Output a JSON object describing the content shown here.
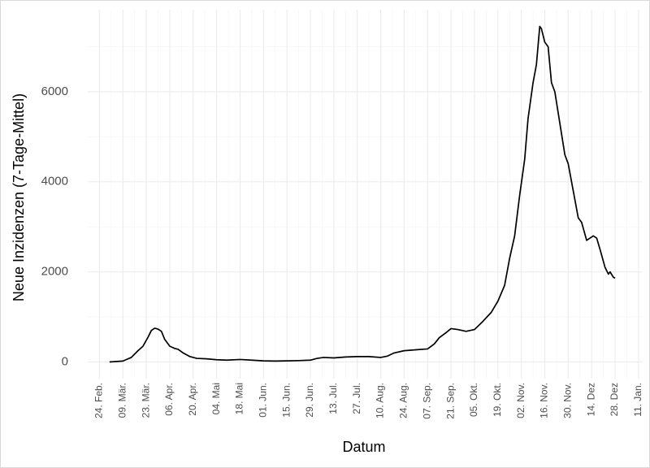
{
  "chart_data": {
    "type": "line",
    "x_label": "Datum",
    "y_label": "Neue Inzidenzen (7-Tage-Mittel)",
    "xlim": [
      "02-17",
      "01-13"
    ],
    "ylim": [
      -370,
      7820
    ],
    "yticks": [
      0,
      2000,
      4000,
      6000
    ],
    "xticks": [
      {
        "value": "02-24",
        "label": "24. Feb."
      },
      {
        "value": "03-09",
        "label": "09. Mär."
      },
      {
        "value": "03-23",
        "label": "23. Mär."
      },
      {
        "value": "04-06",
        "label": "06. Apr."
      },
      {
        "value": "04-20",
        "label": "20. Apr."
      },
      {
        "value": "05-04",
        "label": "04. Mai"
      },
      {
        "value": "05-18",
        "label": "18. Mai"
      },
      {
        "value": "06-01",
        "label": "01. Jun."
      },
      {
        "value": "06-15",
        "label": "15. Jun."
      },
      {
        "value": "06-29",
        "label": "29. Jun."
      },
      {
        "value": "07-13",
        "label": "13. Jul."
      },
      {
        "value": "07-27",
        "label": "27. Jul."
      },
      {
        "value": "08-10",
        "label": "10. Aug."
      },
      {
        "value": "08-24",
        "label": "24. Aug."
      },
      {
        "value": "09-07",
        "label": "07. Sep."
      },
      {
        "value": "09-21",
        "label": "21. Sep."
      },
      {
        "value": "10-05",
        "label": "05. Okt."
      },
      {
        "value": "10-19",
        "label": "19. Okt."
      },
      {
        "value": "11-02",
        "label": "02. Nov."
      },
      {
        "value": "11-16",
        "label": "16. Nov."
      },
      {
        "value": "11-30",
        "label": "30. Nov."
      },
      {
        "value": "12-14",
        "label": "14. Dez"
      },
      {
        "value": "12-28",
        "label": "28. Dez"
      },
      {
        "value": "01-11",
        "label": "11. Jan."
      }
    ],
    "grid": true,
    "color": "#000000",
    "x": [
      "03-01",
      "03-09",
      "03-14",
      "03-18",
      "03-21",
      "03-24",
      "03-26",
      "03-28",
      "03-30",
      "04-01",
      "04-03",
      "04-06",
      "04-09",
      "04-11",
      "04-14",
      "04-18",
      "04-22",
      "04-28",
      "05-04",
      "05-10",
      "05-18",
      "05-25",
      "06-01",
      "06-08",
      "06-15",
      "06-22",
      "06-29",
      "07-03",
      "07-07",
      "07-13",
      "07-20",
      "07-27",
      "08-03",
      "08-10",
      "08-14",
      "08-18",
      "08-24",
      "08-31",
      "09-07",
      "09-11",
      "09-14",
      "09-18",
      "09-21",
      "09-25",
      "09-30",
      "10-05",
      "10-10",
      "10-15",
      "10-19",
      "10-23",
      "10-26",
      "10-29",
      "11-01",
      "11-04",
      "11-06",
      "11-09",
      "11-11",
      "11-13",
      "11-14",
      "11-16",
      "11-18",
      "11-20",
      "11-22",
      "11-25",
      "11-28",
      "11-30",
      "12-03",
      "12-06",
      "12-08",
      "12-11",
      "12-13",
      "12-15",
      "12-17",
      "12-19",
      "12-22",
      "12-24",
      "12-25",
      "12-27",
      "12-28"
    ],
    "values": [
      0,
      20,
      100,
      250,
      350,
      550,
      700,
      750,
      730,
      680,
      500,
      350,
      300,
      280,
      200,
      120,
      80,
      70,
      50,
      40,
      55,
      40,
      25,
      20,
      25,
      30,
      40,
      80,
      100,
      90,
      110,
      120,
      120,
      100,
      130,
      200,
      250,
      270,
      290,
      400,
      540,
      650,
      740,
      720,
      680,
      720,
      900,
      1100,
      1350,
      1700,
      2300,
      2800,
      3700,
      4500,
      5400,
      6200,
      6600,
      7450,
      7400,
      7100,
      7000,
      6200,
      6000,
      5300,
      4600,
      4400,
      3800,
      3200,
      3100,
      2700,
      2750,
      2800,
      2750,
      2500,
      2100,
      1950,
      2000,
      1880,
      1860
    ]
  }
}
